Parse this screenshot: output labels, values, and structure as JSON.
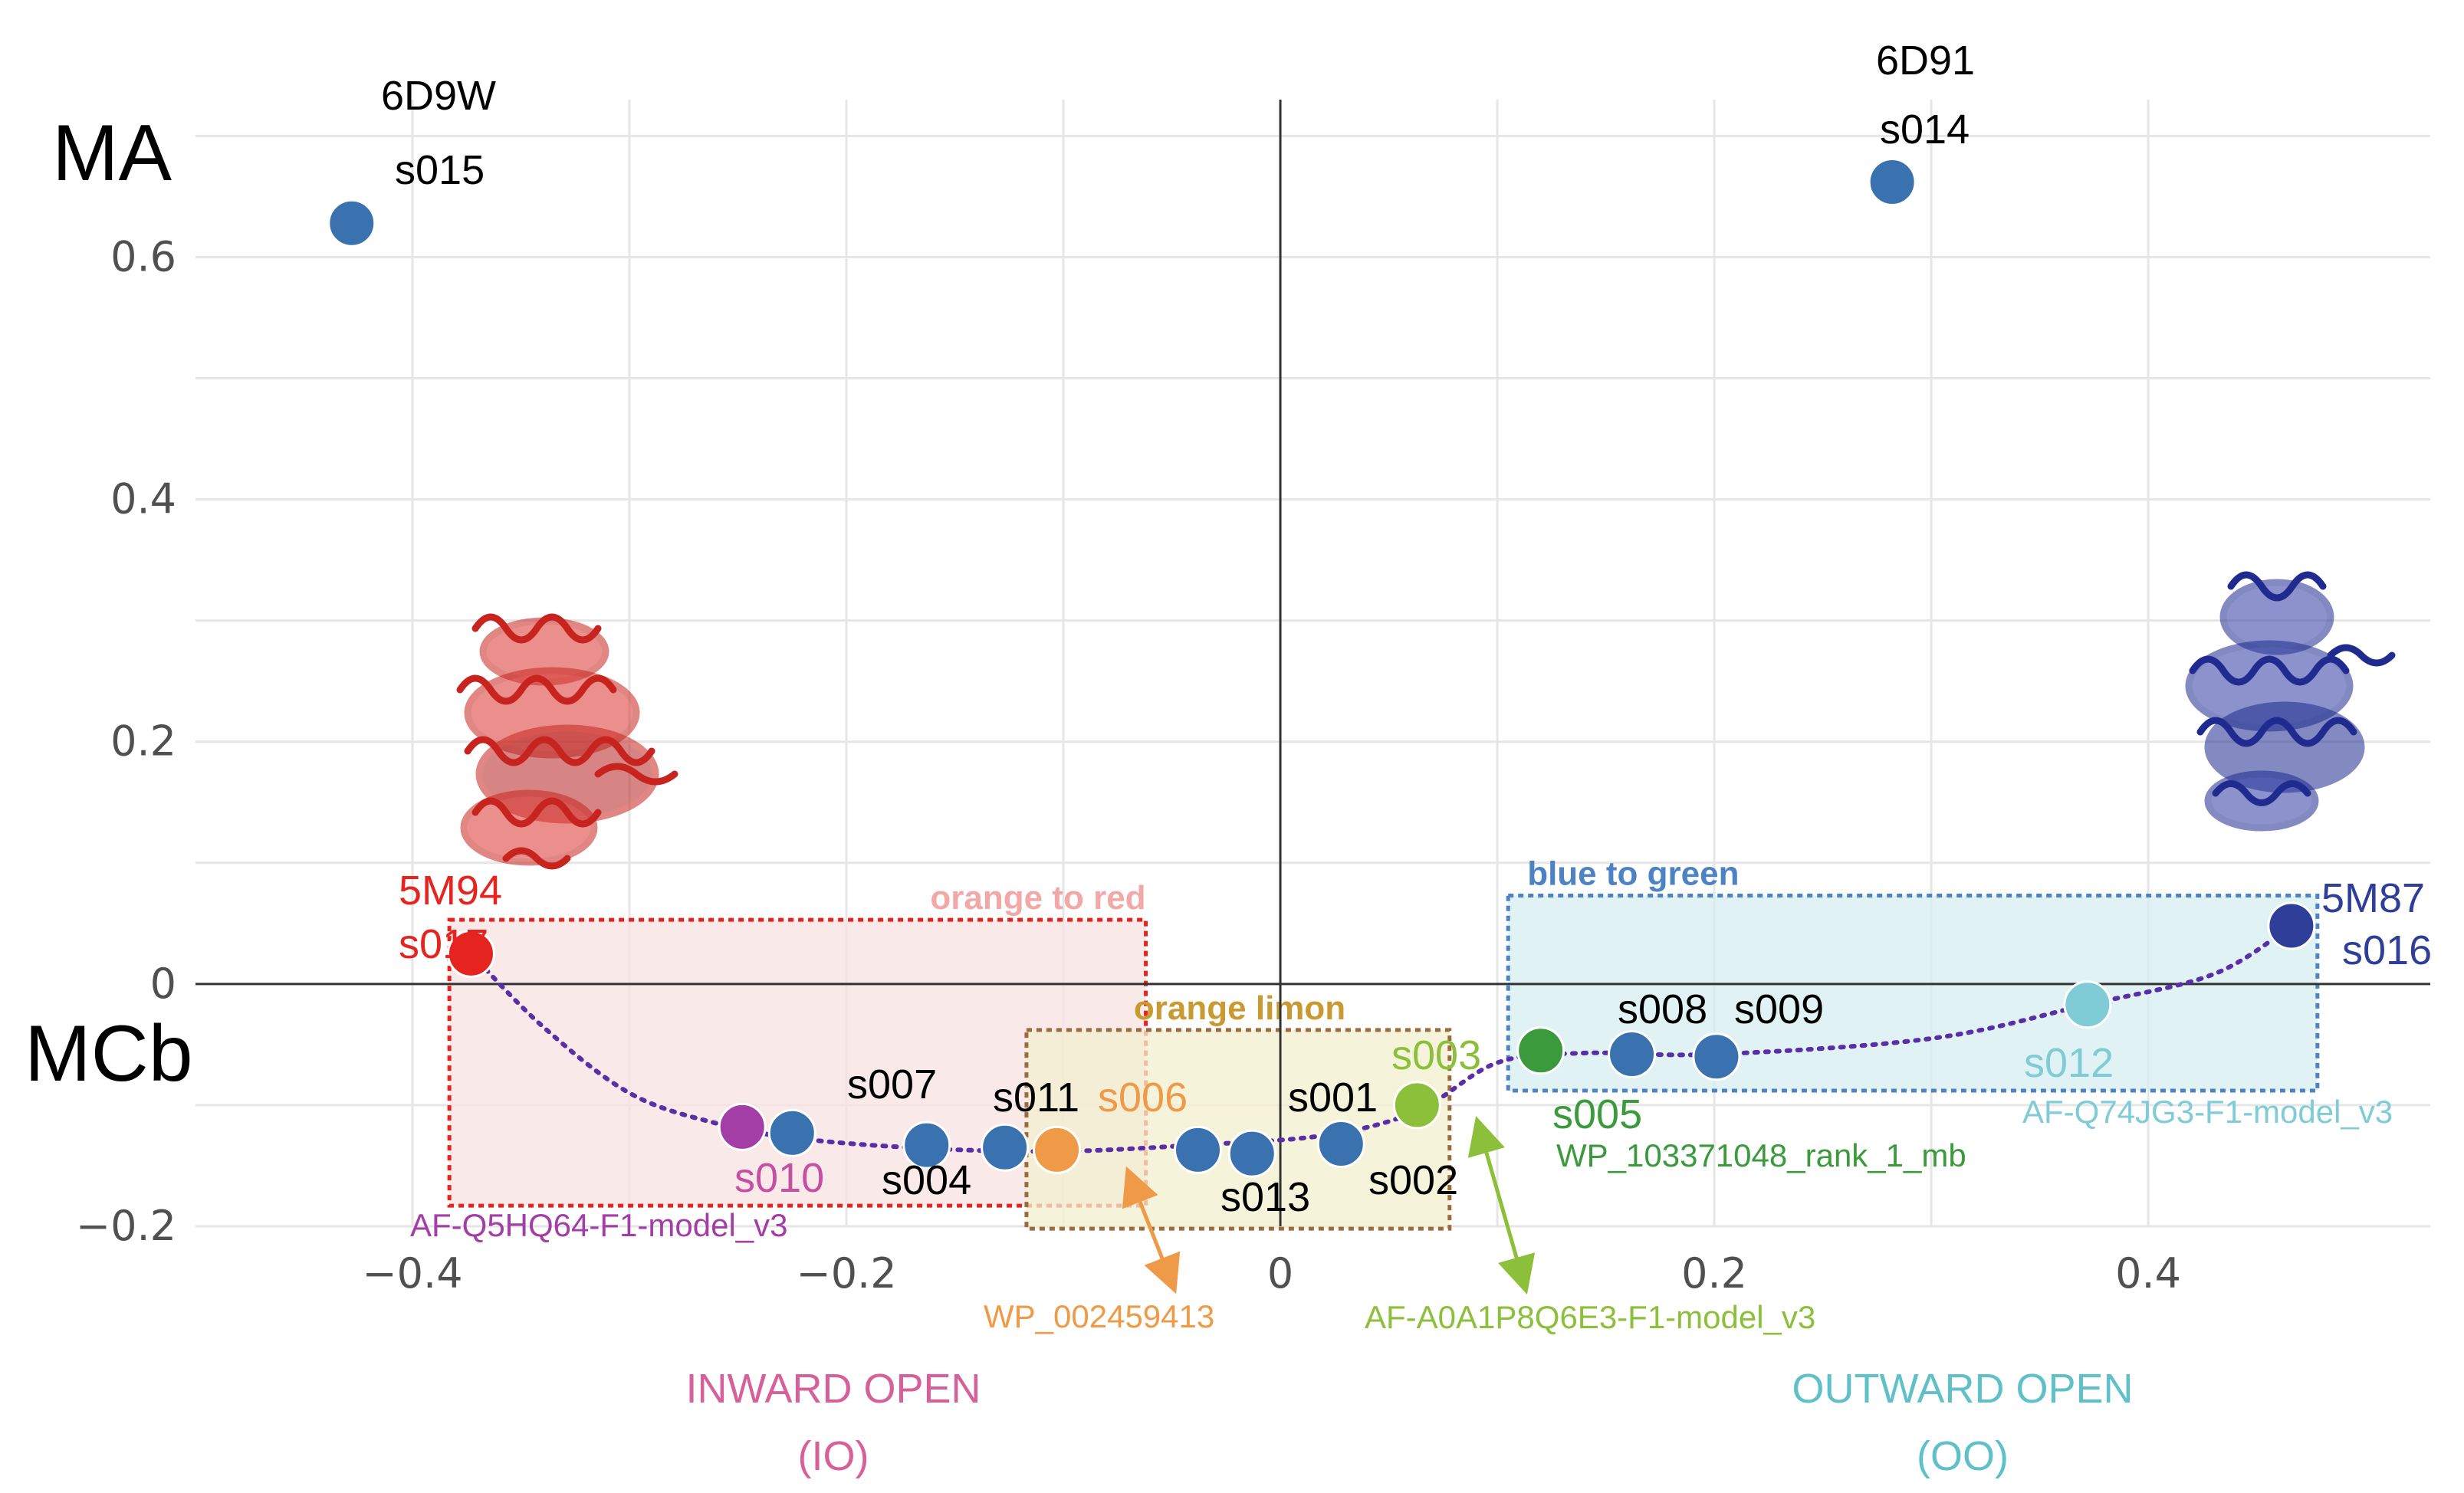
{
  "chart_data": {
    "type": "scatter",
    "title": "",
    "xlabel": "",
    "ylabel": "",
    "xlim": [
      -0.5,
      0.53
    ],
    "ylim": [
      -0.2,
      0.73
    ],
    "x_ticks": [
      "−0.4",
      "−0.2",
      "0",
      "0.2",
      "0.4"
    ],
    "x_tick_values": [
      -0.4,
      -0.2,
      0,
      0.2,
      0.4
    ],
    "y_ticks": [
      "−0.2",
      "0",
      "0.2",
      "0.4",
      "0.6"
    ],
    "y_tick_values": [
      -0.2,
      0,
      0.2,
      0.4,
      0.6
    ],
    "grid": true,
    "axis_labels": {
      "y_top": "MA",
      "x_side": "MCb"
    },
    "points": [
      {
        "label": "s015",
        "x": -0.428,
        "y": 0.628,
        "color": "#3a72b0"
      },
      {
        "label": "s014",
        "x": 0.282,
        "y": 0.662,
        "color": "#3a72b0"
      },
      {
        "label": "s017",
        "x": -0.373,
        "y": 0.025,
        "color": "#e52420"
      },
      {
        "label": "s010",
        "x": -0.248,
        "y": -0.118,
        "color": "#a23ea6"
      },
      {
        "label": "s007",
        "x": -0.225,
        "y": -0.123,
        "color": "#3a72b0"
      },
      {
        "label": "s004",
        "x": -0.163,
        "y": -0.133,
        "color": "#3a72b0"
      },
      {
        "label": "s011",
        "x": -0.127,
        "y": -0.135,
        "color": "#3a72b0"
      },
      {
        "label": "s006",
        "x": -0.103,
        "y": -0.137,
        "color": "#ee9a47"
      },
      {
        "label": "s013",
        "x": -0.038,
        "y": -0.137,
        "color": "#3a72b0"
      },
      {
        "label": "s001",
        "x": -0.013,
        "y": -0.14,
        "color": "#3a72b0"
      },
      {
        "label": "s002",
        "x": 0.028,
        "y": -0.132,
        "color": "#3a72b0"
      },
      {
        "label": "s003",
        "x": 0.063,
        "y": -0.1,
        "color": "#8cbf3a"
      },
      {
        "label": "s005",
        "x": 0.12,
        "y": -0.055,
        "color": "#3a9a3c"
      },
      {
        "label": "s008",
        "x": 0.162,
        "y": -0.058,
        "color": "#3a72b0"
      },
      {
        "label": "s009",
        "x": 0.201,
        "y": -0.06,
        "color": "#3a72b0"
      },
      {
        "label": "s012",
        "x": 0.372,
        "y": -0.017,
        "color": "#7fcbd6"
      },
      {
        "label": "s016",
        "x": 0.466,
        "y": 0.048,
        "color": "#2f3f99"
      }
    ],
    "trend_path": [
      [
        -0.373,
        0.025
      ],
      [
        -0.34,
        -0.035
      ],
      [
        -0.3,
        -0.09
      ],
      [
        -0.26,
        -0.115
      ],
      [
        -0.22,
        -0.128
      ],
      [
        -0.16,
        -0.136
      ],
      [
        -0.1,
        -0.138
      ],
      [
        -0.04,
        -0.133
      ],
      [
        0.02,
        -0.125
      ],
      [
        0.063,
        -0.105
      ],
      [
        0.1,
        -0.065
      ],
      [
        0.14,
        -0.057
      ],
      [
        0.2,
        -0.058
      ],
      [
        0.3,
        -0.045
      ],
      [
        0.372,
        -0.017
      ],
      [
        0.43,
        0.008
      ],
      [
        0.466,
        0.048
      ]
    ],
    "regions": [
      {
        "label": "orange to red",
        "x0": -0.383,
        "x1": -0.062,
        "y0": -0.183,
        "y1": 0.053,
        "fill": "#f7e1e1",
        "stroke": "#e52420",
        "text_color": "#f2a8a6"
      },
      {
        "label": "orange limon",
        "x0": -0.117,
        "x1": 0.078,
        "y0": -0.202,
        "y1": -0.038,
        "fill": "#f3efcf",
        "stroke": "#9a6b3f",
        "text_color": "#c99a32"
      },
      {
        "label": "blue to green",
        "x0": 0.105,
        "x1": 0.478,
        "y0": -0.088,
        "y1": 0.073,
        "fill": "#d7edf0",
        "stroke": "#4d83c4",
        "text_color": "#4d83c4"
      }
    ],
    "annotations": [
      {
        "text": "6D9W",
        "color": "#000000"
      },
      {
        "text": "6D91",
        "color": "#000000"
      },
      {
        "text": "5M94",
        "color": "#e52420"
      },
      {
        "text": "5M87",
        "color": "#2f3f99"
      },
      {
        "text": "AF-Q5HQ64-F1-model_v3",
        "color": "#a23ea6"
      },
      {
        "text": "WP_002459413",
        "color": "#ee9a47"
      },
      {
        "text": "AF-A0A1P8Q6E3-F1-model_v3",
        "color": "#8cbf3a"
      },
      {
        "text": "WP_103371048_rank_1_mb",
        "color": "#3a9a3c"
      },
      {
        "text": "AF-Q74JG3-F1-model_v3",
        "color": "#7fcbd6"
      }
    ],
    "phase_labels": [
      {
        "name": "INWARD OPEN",
        "abbr": "(IO)",
        "color": "#d6609a"
      },
      {
        "name": "OUTWARD OPEN",
        "abbr": "(OO)",
        "color": "#5fc0c9"
      }
    ]
  }
}
